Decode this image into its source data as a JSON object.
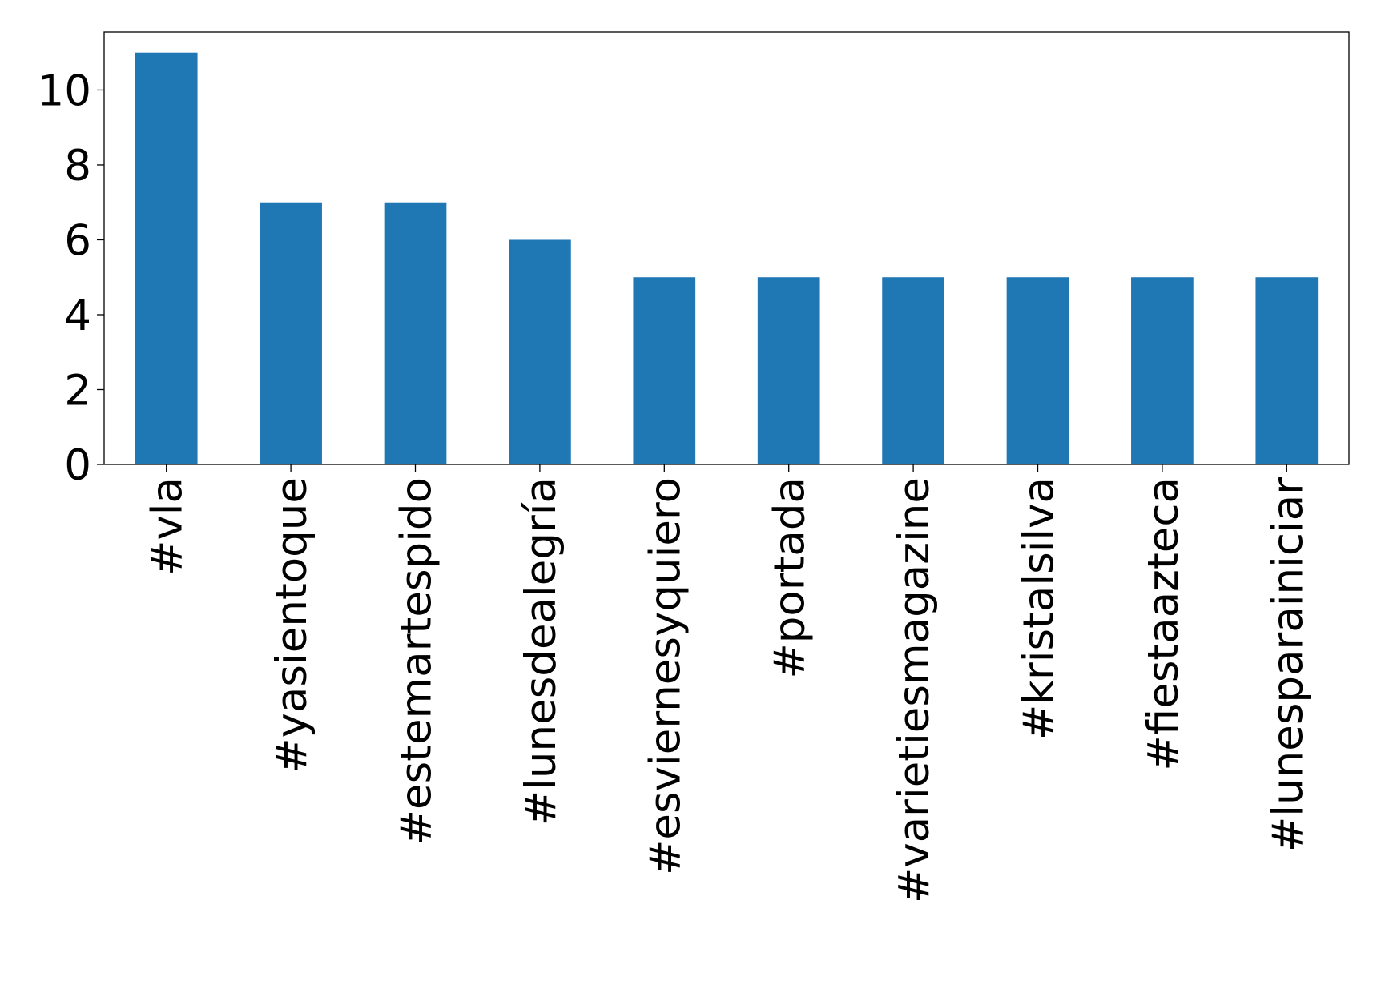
{
  "chart_data": {
    "type": "bar",
    "categories": [
      "#vla",
      "#yasientoque",
      "#estemartespido",
      "#lunesdealegría",
      "#esviernesyquiero",
      "#portada",
      "#varietiesmagazine",
      "#kristalsilva",
      "#fiestaazteca",
      "#lunesparainiciar"
    ],
    "values": [
      11,
      7,
      7,
      6,
      5,
      5,
      5,
      5,
      5,
      5
    ],
    "color": "#1f77b4",
    "ylim": [
      0,
      11.55
    ],
    "yticks": [
      0,
      2,
      4,
      6,
      8,
      10
    ],
    "grid": false
  }
}
